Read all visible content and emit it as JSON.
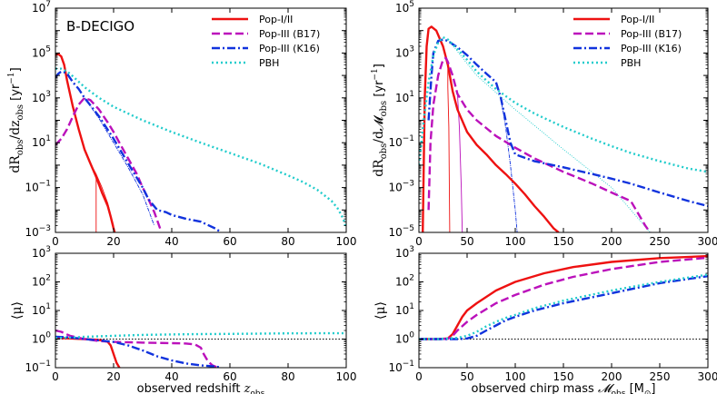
{
  "figure_label": "B-DECIGO",
  "colors": {
    "pop12": "#ee1111",
    "pop3b17": "#bb11bb",
    "pop3k16": "#1133dd",
    "pbh": "#22cccc"
  },
  "chart_data": [
    {
      "id": "top-left",
      "type": "line",
      "xlabel": "",
      "ylabel": "dR_obs/dz_obs [yr^-1]",
      "ylabel_main": "dR",
      "ylabel_sub1": "obs",
      "ylabel_mid": "/dz",
      "ylabel_sub2": "obs",
      "ylabel_unit": " [yr",
      "ylabel_sup": "−1",
      "ylabel_close": "]",
      "xscale": "linear",
      "yscale": "log",
      "xlim": [
        0,
        100
      ],
      "ylim": [
        0.001,
        10000000
      ],
      "xticks": [
        0,
        20,
        40,
        60,
        80,
        100
      ],
      "yticks": [
        {
          "value": 0.001,
          "base": "10",
          "exp": "−3"
        },
        {
          "value": 0.1,
          "base": "10",
          "exp": "−1"
        },
        {
          "value": 10,
          "base": "10",
          "exp": "1"
        },
        {
          "value": 1000,
          "base": "10",
          "exp": "3"
        },
        {
          "value": 100000,
          "base": "10",
          "exp": "5"
        },
        {
          "value": 10000000,
          "base": "10",
          "exp": "7"
        }
      ],
      "legend": {
        "placement": "top-right",
        "entries": [
          "Pop-I/II",
          "Pop-III (B17)",
          "Pop-III (K16)",
          "PBH"
        ]
      },
      "series": [
        {
          "name": "Pop-I/II",
          "style": "solid",
          "x": [
            0,
            1,
            2,
            3,
            4,
            6,
            8,
            10,
            12,
            14,
            16,
            17,
            18,
            19,
            20,
            21
          ],
          "y": [
            80000,
            90000,
            70000,
            30000,
            6000,
            400,
            40,
            5,
            1.2,
            0.3,
            0.06,
            0.03,
            0.015,
            0.005,
            0.0015,
            0.0005
          ]
        },
        {
          "name": "Pop-III (B17)",
          "style": "dashed",
          "x": [
            0,
            2,
            4,
            6,
            8,
            10,
            12,
            15,
            18,
            20,
            22,
            25,
            28,
            30,
            32,
            34,
            36
          ],
          "y": [
            8,
            15,
            40,
            150,
            500,
            1000,
            800,
            300,
            80,
            30,
            10,
            2,
            0.4,
            0.1,
            0.03,
            0.008,
            0.0015
          ]
        },
        {
          "name": "Pop-III (K16)",
          "style": "dashdot",
          "x": [
            0,
            1,
            2,
            3,
            4,
            6,
            8,
            10,
            15,
            20,
            25,
            30,
            32,
            35,
            38,
            40,
            45,
            50,
            55,
            57
          ],
          "y": [
            8000,
            12000,
            15000,
            14000,
            12000,
            5000,
            2500,
            1000,
            150,
            15,
            1.2,
            0.1,
            0.03,
            0.01,
            0.008,
            0.006,
            0.004,
            0.003,
            0.0015,
            0.001
          ]
        },
        {
          "name": "PBH",
          "style": "dotted",
          "x": [
            0,
            2,
            4,
            5,
            10,
            15,
            20,
            30,
            40,
            50,
            60,
            70,
            80,
            85,
            90,
            93,
            95,
            97,
            98,
            99,
            100
          ],
          "y": [
            20000,
            20000,
            15000,
            12000,
            3000,
            1000,
            400,
            100,
            30,
            10,
            3.5,
            1.2,
            0.35,
            0.18,
            0.08,
            0.04,
            0.025,
            0.012,
            0.007,
            0.004,
            0.0015
          ]
        }
      ],
      "thin_series": [
        {
          "of": "Pop-I/II",
          "x": [
            12,
            14,
            16,
            18,
            20
          ],
          "y": [
            1.2,
            0.4,
            0.1,
            0.02,
            0.002
          ]
        },
        {
          "of": "Pop-I/II-drop",
          "x": [
            14,
            14
          ],
          "y": [
            0.3,
            0.001
          ]
        },
        {
          "of": "Pop-III (K16)",
          "x": [
            10,
            15,
            20,
            25,
            30,
            34
          ],
          "y": [
            1000,
            120,
            10,
            0.8,
            0.05,
            0.002
          ]
        }
      ]
    },
    {
      "id": "top-right",
      "type": "line",
      "xlabel": "",
      "ylabel": "dR_obs/dM_obs [yr^-1]",
      "ylabel_main": "dR",
      "ylabel_sub1": "obs",
      "ylabel_mid": "/d𝓜",
      "ylabel_sub2": "obs",
      "ylabel_unit": " [yr",
      "ylabel_sup": "−1",
      "ylabel_close": "]",
      "xscale": "linear",
      "yscale": "log",
      "xlim": [
        0,
        300
      ],
      "ylim": [
        1e-05,
        100000
      ],
      "xticks": [
        0,
        50,
        100,
        150,
        200,
        250,
        300
      ],
      "yticks": [
        {
          "value": 1e-05,
          "base": "10",
          "exp": "−5"
        },
        {
          "value": 0.001,
          "base": "10",
          "exp": "−3"
        },
        {
          "value": 0.1,
          "base": "10",
          "exp": "−1"
        },
        {
          "value": 10,
          "base": "10",
          "exp": "1"
        },
        {
          "value": 1000,
          "base": "10",
          "exp": "3"
        },
        {
          "value": 100000,
          "base": "10",
          "exp": "5"
        }
      ],
      "legend": {
        "placement": "top-right",
        "entries": [
          "Pop-I/II",
          "Pop-III (B17)",
          "Pop-III (K16)",
          "PBH"
        ]
      },
      "series": [
        {
          "name": "Pop-I/II",
          "style": "solid",
          "x": [
            4,
            6,
            8,
            10,
            13,
            18,
            25,
            30,
            35,
            40,
            50,
            60,
            70,
            80,
            90,
            100,
            110,
            120,
            130,
            140,
            145
          ],
          "y": [
            1e-05,
            10,
            2000,
            12000,
            15000,
            10000,
            2000,
            300,
            20,
            3,
            0.3,
            0.08,
            0.03,
            0.01,
            0.004,
            0.0015,
            0.0005,
            0.00015,
            5e-05,
            1.5e-05,
            1e-05
          ]
        },
        {
          "name": "Pop-III (B17)",
          "style": "dashed",
          "x": [
            10,
            12,
            15,
            20,
            25,
            28,
            30,
            35,
            40,
            50,
            60,
            80,
            100,
            120,
            150,
            180,
            200,
            220,
            235,
            240
          ],
          "y": [
            0.0001,
            0.1,
            5,
            100,
            500,
            600,
            400,
            100,
            15,
            3,
            1,
            0.2,
            0.06,
            0.02,
            0.005,
            0.0015,
            0.0006,
            0.00025,
            2e-05,
            1e-05
          ]
        },
        {
          "name": "Pop-III (K16)",
          "style": "dashdot",
          "x": [
            10,
            13,
            15,
            20,
            25,
            30,
            35,
            40,
            50,
            60,
            70,
            80,
            85,
            90,
            95,
            100,
            120,
            150,
            180,
            200,
            220,
            250,
            280,
            300
          ],
          "y": [
            1,
            100,
            1000,
            3500,
            4000,
            3500,
            2500,
            1800,
            800,
            300,
            120,
            50,
            10,
            1,
            0.1,
            0.03,
            0.015,
            0.008,
            0.004,
            0.0025,
            0.0015,
            0.0006,
            0.00025,
            0.00015
          ]
        },
        {
          "name": "PBH",
          "style": "dotted",
          "x": [
            0,
            5,
            10,
            15,
            20,
            25,
            30,
            40,
            50,
            60,
            70,
            80,
            90,
            100,
            120,
            150,
            180,
            200,
            220,
            250,
            280,
            300
          ],
          "y": [
            0.01,
            1,
            50,
            800,
            3000,
            5000,
            4000,
            1500,
            500,
            150,
            60,
            25,
            12,
            6,
            2,
            0.5,
            0.15,
            0.07,
            0.035,
            0.015,
            0.007,
            0.005
          ]
        }
      ],
      "thin_series": [
        {
          "of": "Pop-I/II-drop",
          "x": [
            30,
            30,
            31,
            32
          ],
          "y": [
            200,
            30,
            0.5,
            1e-05
          ]
        },
        {
          "of": "Pop-III (B17)-drop",
          "x": [
            40,
            42,
            44,
            45
          ],
          "y": [
            15,
            0.5,
            0.001,
            1e-05
          ]
        },
        {
          "of": "Pop-III (K16)-drop",
          "x": [
            85,
            90,
            95,
            100,
            102
          ],
          "y": [
            10,
            0.5,
            0.01,
            0.0001,
            1e-05
          ]
        },
        {
          "of": "PBH-thin",
          "x": [
            30,
            60,
            100,
            150,
            200,
            240
          ],
          "y": [
            4000,
            100,
            3,
            0.05,
            0.001,
            1e-05
          ]
        }
      ]
    },
    {
      "id": "bottom-left",
      "type": "line",
      "xlabel": "observed redshift z_obs",
      "xlabel_main": "observed redshift ",
      "xlabel_var": "z",
      "xlabel_sub": "obs",
      "xlabel_tail": "",
      "ylabel": "⟨μ⟩",
      "xscale": "linear",
      "yscale": "log",
      "xlim": [
        0,
        100
      ],
      "ylim": [
        0.1,
        1000
      ],
      "xticks": [
        0,
        20,
        40,
        60,
        80,
        100
      ],
      "yticks": [
        {
          "value": 0.1,
          "base": "10",
          "exp": "−1"
        },
        {
          "value": 1,
          "base": "10",
          "exp": "0"
        },
        {
          "value": 10,
          "base": "10",
          "exp": "1"
        },
        {
          "value": 100,
          "base": "10",
          "exp": "2"
        },
        {
          "value": 1000,
          "base": "10",
          "exp": "3"
        }
      ],
      "reference_line": 1,
      "series": [
        {
          "name": "Pop-I/II",
          "style": "solid",
          "x": [
            0,
            5,
            10,
            14,
            16,
            18,
            19,
            20,
            21,
            22
          ],
          "y": [
            1.1,
            1.05,
            1.0,
            0.95,
            0.9,
            0.8,
            0.6,
            0.3,
            0.15,
            0.1
          ]
        },
        {
          "name": "Pop-III (B17)",
          "style": "dashed",
          "x": [
            0,
            2,
            5,
            10,
            15,
            20,
            30,
            40,
            45,
            48,
            50,
            51,
            52,
            53,
            54,
            56
          ],
          "y": [
            2,
            1.8,
            1.3,
            1.0,
            0.85,
            0.8,
            0.75,
            0.72,
            0.7,
            0.65,
            0.5,
            0.3,
            0.2,
            0.15,
            0.12,
            0.1
          ]
        },
        {
          "name": "Pop-III (K16)",
          "style": "dashdot",
          "x": [
            0,
            5,
            10,
            15,
            20,
            25,
            30,
            35,
            40,
            45,
            50,
            55,
            57
          ],
          "y": [
            1.2,
            1.15,
            1.0,
            0.9,
            0.8,
            0.6,
            0.4,
            0.25,
            0.18,
            0.14,
            0.12,
            0.11,
            0.1
          ]
        },
        {
          "name": "PBH",
          "style": "dotted",
          "x": [
            0,
            5,
            10,
            20,
            30,
            40,
            50,
            60,
            70,
            80,
            90,
            100
          ],
          "y": [
            1.1,
            1.12,
            1.2,
            1.3,
            1.4,
            1.45,
            1.5,
            1.52,
            1.55,
            1.58,
            1.6,
            1.6
          ]
        }
      ]
    },
    {
      "id": "bottom-right",
      "type": "line",
      "xlabel": "observed chirp mass M_obs [M_⊙]",
      "xlabel_main": "observed chirp mass ",
      "xlabel_var": "𝓜",
      "xlabel_sub": "obs",
      "xlabel_tail": " [M",
      "xlabel_tail_sub": "⊙",
      "xlabel_tail_close": "]",
      "ylabel": "⟨μ⟩",
      "xscale": "linear",
      "yscale": "log",
      "xlim": [
        0,
        300
      ],
      "ylim": [
        0.1,
        1000
      ],
      "xticks": [
        0,
        50,
        100,
        150,
        200,
        250,
        300
      ],
      "yticks": [
        {
          "value": 0.1,
          "base": "10",
          "exp": "−1"
        },
        {
          "value": 1,
          "base": "10",
          "exp": "0"
        },
        {
          "value": 10,
          "base": "10",
          "exp": "1"
        },
        {
          "value": 100,
          "base": "10",
          "exp": "2"
        },
        {
          "value": 1000,
          "base": "10",
          "exp": "3"
        }
      ],
      "reference_line": 1,
      "series": [
        {
          "name": "Pop-I/II",
          "style": "solid",
          "x": [
            0,
            20,
            30,
            35,
            40,
            45,
            50,
            60,
            80,
            100,
            130,
            160,
            200,
            250,
            300
          ],
          "y": [
            1,
            1,
            1.05,
            1.5,
            3,
            6,
            10,
            18,
            50,
            100,
            200,
            330,
            500,
            680,
            800
          ]
        },
        {
          "name": "Pop-III (B17)",
          "style": "dashed",
          "x": [
            0,
            20,
            30,
            35,
            40,
            50,
            60,
            80,
            100,
            130,
            160,
            200,
            250,
            300
          ],
          "y": [
            1,
            1,
            1.02,
            1.3,
            2,
            4,
            7,
            18,
            35,
            80,
            150,
            280,
            500,
            700
          ]
        },
        {
          "name": "Pop-III (K16)",
          "style": "dashdot",
          "x": [
            0,
            40,
            50,
            60,
            70,
            80,
            90,
            100,
            120,
            150,
            200,
            250,
            300
          ],
          "y": [
            1,
            1,
            1.05,
            1.3,
            2,
            3,
            4.5,
            6,
            10,
            18,
            40,
            90,
            160
          ]
        },
        {
          "name": "PBH",
          "style": "dotted",
          "x": [
            0,
            20,
            30,
            40,
            50,
            60,
            70,
            80,
            90,
            100,
            120,
            150,
            200,
            250,
            300
          ],
          "y": [
            1,
            1,
            1.05,
            1.1,
            1.3,
            1.8,
            2.8,
            4,
            5.5,
            7,
            12,
            22,
            50,
            100,
            180
          ]
        }
      ]
    }
  ]
}
